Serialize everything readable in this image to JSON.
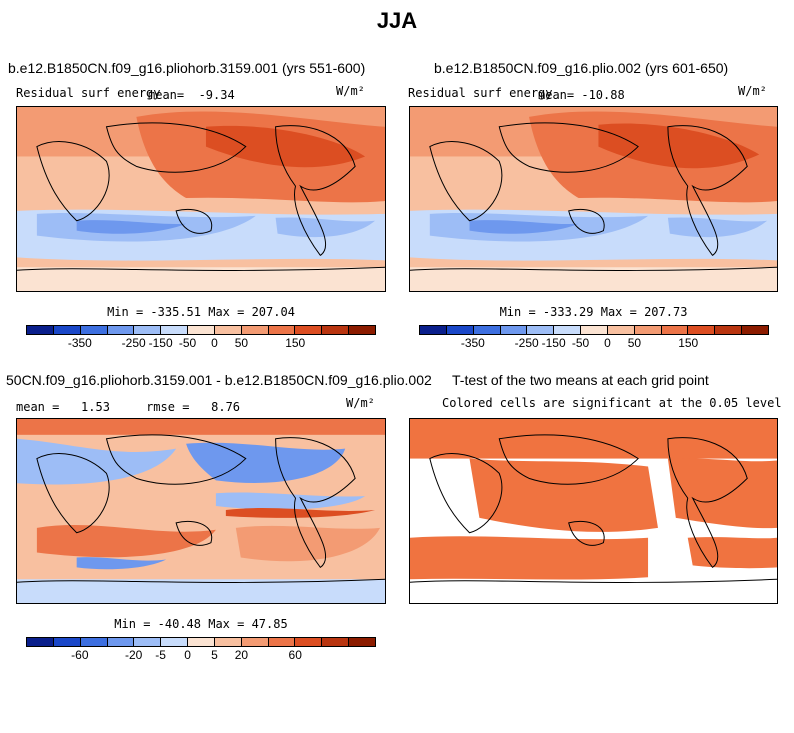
{
  "figure": {
    "title": "JJA"
  },
  "chart_data": [
    {
      "type": "heatmap",
      "title": "b.e12.B1850CN.f09_g16.pliohorb.3159.001 (yrs 551-600)",
      "variable": "Residual surf energy",
      "mean_label": "mean=",
      "mean": "-9.34",
      "units": "W/m²",
      "min": -335.51,
      "max": 207.04,
      "minmax_label": "Min = -335.51 Max = 207.04",
      "colorbar_ticks": [
        "-350",
        "-250",
        "-150",
        "-50",
        "0",
        "50",
        "150"
      ]
    },
    {
      "type": "heatmap",
      "title": "b.e12.B1850CN.f09_g16.plio.002 (yrs 601-650)",
      "variable": "Residual surf energy",
      "mean_label": "mean=",
      "mean": "-10.88",
      "units": "W/m²",
      "min": -333.29,
      "max": 207.73,
      "minmax_label": "Min = -333.29 Max = 207.73",
      "colorbar_ticks": [
        "-350",
        "-250",
        "-150",
        "-50",
        "0",
        "50",
        "150"
      ]
    },
    {
      "type": "heatmap",
      "title": "50CN.f09_g16.pliohorb.3159.001 - b.e12.B1850CN.f09_g16.plio.002",
      "mean_label": "mean =",
      "mean": "1.53",
      "rmse_label": "rmse =",
      "rmse": "8.76",
      "units": "W/m²",
      "min": -40.48,
      "max": 47.85,
      "minmax_label": "Min = -40.48 Max = 47.85",
      "colorbar_ticks": [
        "-60",
        "-20",
        "-5",
        "0",
        "5",
        "20",
        "60"
      ]
    },
    {
      "type": "heatmap",
      "title": "T-test of the two means at each grid point",
      "subtitle": "Colored cells are significant at the 0.05 level"
    }
  ],
  "colors": {
    "scale": [
      "#0a1f8c",
      "#1a47c8",
      "#3d6fe0",
      "#6e98ee",
      "#9dbdf6",
      "#c8dcfb",
      "#fbe3d2",
      "#f8c0a0",
      "#f39b73",
      "#ec7448",
      "#dc4e22",
      "#b93510",
      "#8c1c00"
    ],
    "sig": "#f07340"
  }
}
